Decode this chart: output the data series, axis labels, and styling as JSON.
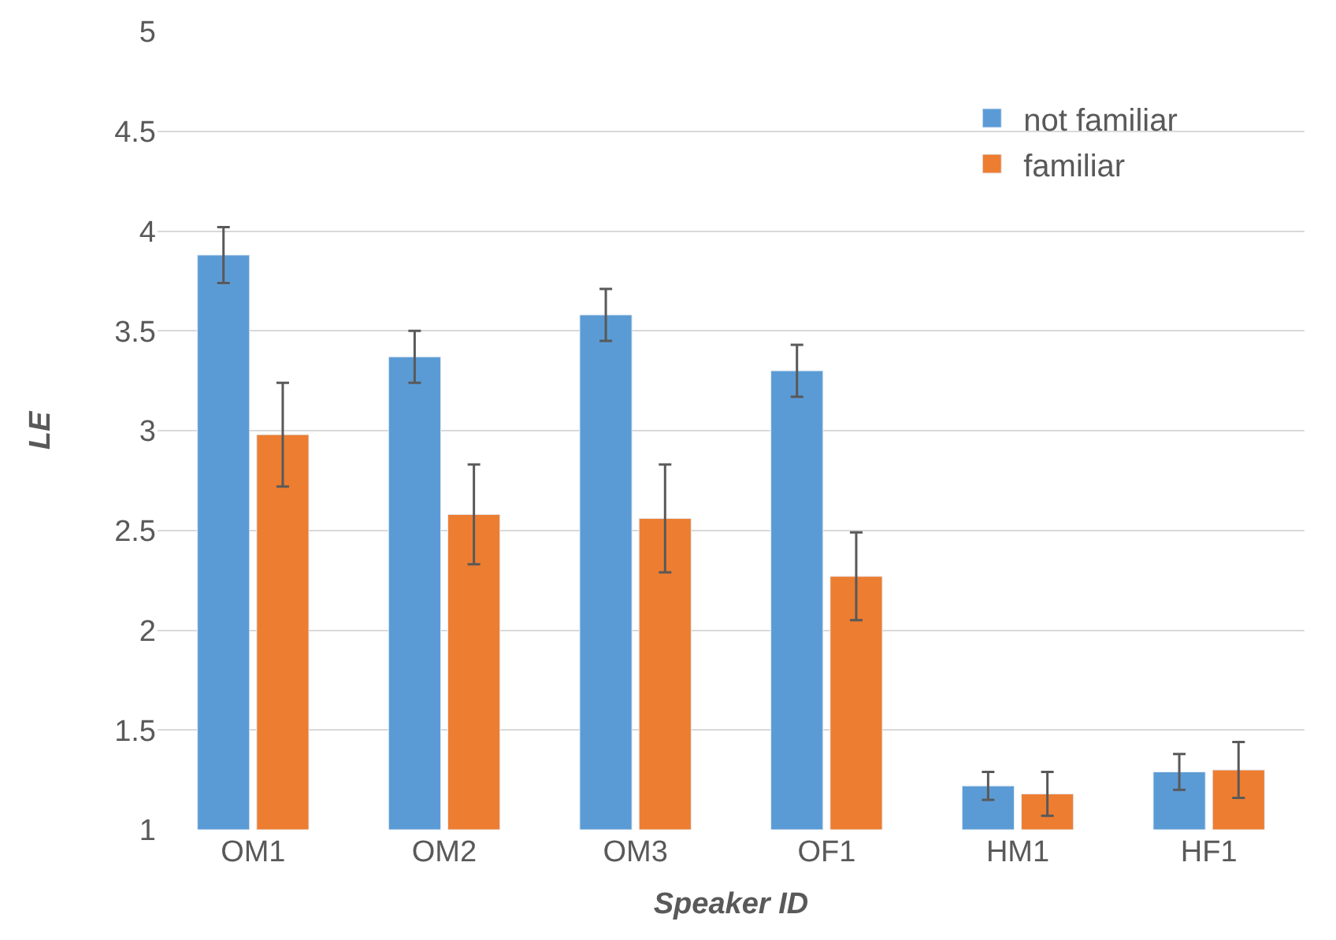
{
  "chart_data": {
    "type": "bar",
    "xlabel": "Speaker ID",
    "ylabel": "LE",
    "categories": [
      "OM1",
      "OM2",
      "OM3",
      "OF1",
      "HM1",
      "HF1"
    ],
    "series": [
      {
        "name": "not familiar",
        "color": "#5b9bd5",
        "values": [
          3.88,
          3.37,
          3.58,
          3.3,
          1.22,
          1.29
        ],
        "errors": [
          0.14,
          0.13,
          0.13,
          0.13,
          0.07,
          0.09
        ]
      },
      {
        "name": "familiar",
        "color": "#ed7d31",
        "values": [
          2.98,
          2.58,
          2.56,
          2.27,
          1.18,
          1.3
        ],
        "errors": [
          0.26,
          0.25,
          0.27,
          0.22,
          0.11,
          0.14
        ]
      }
    ],
    "ylim": [
      1,
      5
    ],
    "yticks": [
      1,
      1.5,
      2,
      2.5,
      3,
      3.5,
      4,
      4.5,
      5
    ],
    "grid": "y",
    "legend": "top right"
  }
}
